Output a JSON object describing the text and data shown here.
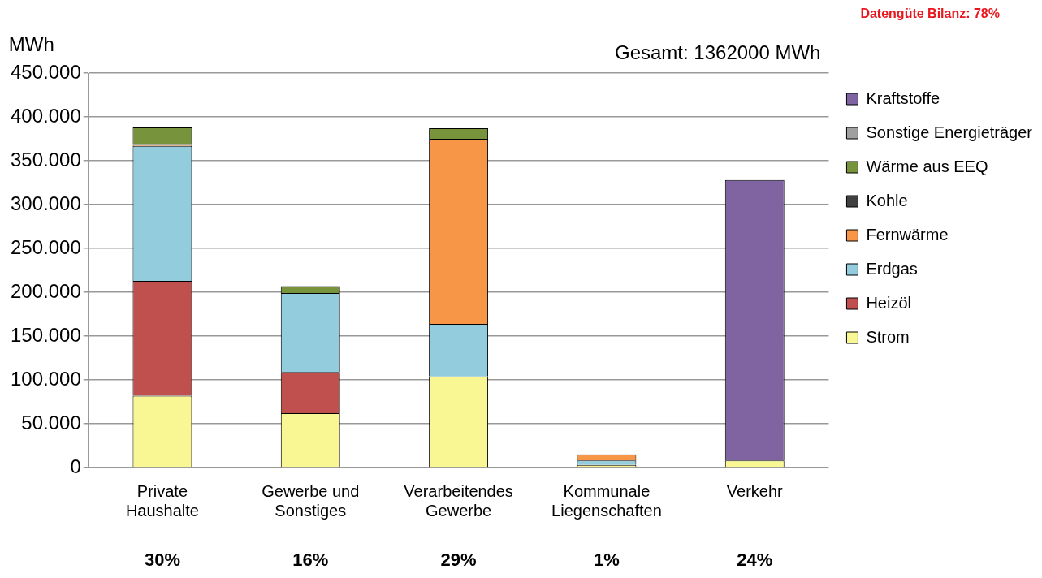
{
  "chart_data": {
    "type": "bar",
    "stacked": true,
    "ylabel": "MWh",
    "categories": [
      "Private\nHaushalte",
      "Gewerbe und\nSonstiges",
      "Verarbeitendes\nGewerbe",
      "Kommunale\nLiegenschaften",
      "Verkehr"
    ],
    "series": [
      {
        "name": "Strom",
        "color": "#f9f793",
        "values": [
          82000,
          62000,
          104000,
          3000,
          8000
        ]
      },
      {
        "name": "Heizöl",
        "color": "#c0504d",
        "values": [
          131000,
          47000,
          0,
          0,
          0
        ]
      },
      {
        "name": "Erdgas",
        "color": "#93cddd",
        "values": [
          154000,
          90000,
          60000,
          5000,
          0
        ]
      },
      {
        "name": "Fernwärme",
        "color": "#f79646",
        "values": [
          2000,
          0,
          211000,
          7000,
          0
        ]
      },
      {
        "name": "Kohle",
        "color": "#404040",
        "values": [
          null,
          0,
          0,
          0,
          0
        ]
      },
      {
        "name": "Wärme aus EEQ",
        "color": "#77933c",
        "values": [
          19000,
          8000,
          12000,
          0,
          0
        ]
      },
      {
        "name": "Sonstige Energieträger",
        "color": "#a0a0a0",
        "values": [
          0,
          0,
          0,
          0,
          0
        ]
      },
      {
        "name": "Kraftstoffe",
        "color": "#8064a2",
        "values": [
          0,
          0,
          0,
          0,
          320000
        ]
      }
    ],
    "ylim": [
      0,
      450000
    ],
    "yticks": [
      0,
      {
        "value": 50000,
        "label": "50.000"
      },
      {
        "value": 100000,
        "label": "100.000"
      },
      {
        "value": 150000,
        "label": "150.000"
      },
      {
        "value": 200000,
        "label": "200.000"
      },
      {
        "value": 250000,
        "label": "250.000"
      },
      {
        "value": 300000,
        "label": "300.000"
      },
      {
        "value": 350000,
        "label": "350.000"
      },
      {
        "value": 400000,
        "label": "400.000"
      },
      {
        "value": 450000,
        "label": "450.000"
      }
    ],
    "grid": "y",
    "legend": "right",
    "annotations": [
      "Gesamt: 1362000 MWh",
      "Datengüte Bilanz: 78%",
      "30%",
      "16%",
      "29%",
      "1%",
      "24%"
    ]
  }
}
